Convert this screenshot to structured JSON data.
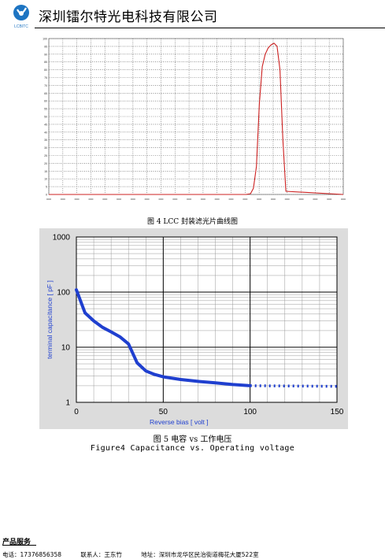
{
  "header": {
    "logo_text": "LCBITC",
    "company": "深圳镭尔特光电科技有限公司"
  },
  "figure1": {
    "caption": "图 4 LCC 封装滤光片曲线图",
    "chart_data": {
      "type": "line",
      "title": "",
      "xlabel": "",
      "ylabel": "",
      "x_tick_count": 22,
      "y_ticks": [
        "100",
        "95",
        "90",
        "85",
        "80",
        "75",
        "70",
        "65",
        "60",
        "55",
        "50",
        "45",
        "40",
        "35",
        "30",
        "25",
        "20",
        "15",
        "10",
        "5",
        "0"
      ],
      "ylim": [
        0,
        100
      ],
      "xlim": [
        0,
        1
      ],
      "grid": true,
      "series": [
        {
          "color": "#cc2020",
          "x": [
            0,
            0.67,
            0.685,
            0.695,
            0.705,
            0.715,
            0.725,
            0.735,
            0.745,
            0.755,
            0.765,
            0.775,
            0.785,
            0.795,
            0.805,
            1
          ],
          "y": [
            0,
            0,
            0.5,
            4,
            18,
            58,
            82,
            90,
            94,
            96,
            97,
            95,
            80,
            35,
            2,
            0
          ]
        }
      ]
    }
  },
  "figure2": {
    "caption_cn": "图 5 电容 vs 工作电压",
    "caption_en": "Figure4  Capacitance vs. Operating voltage",
    "chart_data": {
      "type": "line",
      "xlabel": "Reverse bias [ volt ]",
      "ylabel": "terminal capacitance [ pF ]",
      "x_ticks": [
        0,
        50,
        100,
        150
      ],
      "y_ticks": [
        1,
        10,
        100,
        1000
      ],
      "xlim": [
        0,
        150
      ],
      "ylim": [
        1,
        1000
      ],
      "yscale": "log",
      "grid": true,
      "series": [
        {
          "style": "solid",
          "color": "#1f3fcf",
          "x": [
            0,
            5,
            10,
            15,
            20,
            25,
            30,
            35,
            40,
            45,
            50,
            60,
            70,
            80,
            90,
            100
          ],
          "y": [
            110,
            42,
            30,
            23,
            19,
            15.5,
            11.5,
            5.2,
            3.7,
            3.2,
            2.9,
            2.6,
            2.4,
            2.25,
            2.1,
            2.0
          ]
        },
        {
          "style": "dotted",
          "color": "#1f3fcf",
          "x": [
            100,
            150
          ],
          "y": [
            2.0,
            1.95
          ]
        }
      ]
    }
  },
  "footer": {
    "title": "产品服务",
    "phone": "电话：17376856358",
    "contact": "联系人：王东竹",
    "address": "地址：深圳市龙华区民治街道梅花大厦522室"
  }
}
